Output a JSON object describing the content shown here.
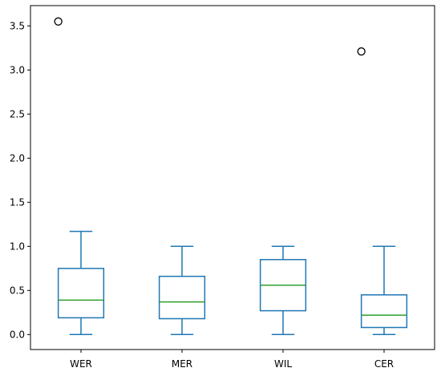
{
  "chart_data": {
    "type": "box",
    "title": "",
    "xlabel": "",
    "ylabel": "",
    "ylim": [
      -0.17,
      3.73
    ],
    "yticks": [
      "0.0",
      "0.5",
      "1.0",
      "1.5",
      "2.0",
      "2.5",
      "3.0",
      "3.5"
    ],
    "ytick_values": [
      0.0,
      0.5,
      1.0,
      1.5,
      2.0,
      2.5,
      3.0,
      3.5
    ],
    "grid": false,
    "colors": {
      "box": "#1f77b4",
      "median": "#2ca02c",
      "flier": "#000000"
    },
    "categories": [
      "WER",
      "MER",
      "WIL",
      "CER"
    ],
    "boxes": [
      {
        "name": "WER",
        "whislo": 0.0,
        "q1": 0.19,
        "med": 0.39,
        "q3": 0.75,
        "whishi": 1.17,
        "fliers": [
          3.55
        ]
      },
      {
        "name": "MER",
        "whislo": 0.0,
        "q1": 0.18,
        "med": 0.37,
        "q3": 0.66,
        "whishi": 1.0,
        "fliers": []
      },
      {
        "name": "WIL",
        "whislo": 0.0,
        "q1": 0.27,
        "med": 0.56,
        "q3": 0.85,
        "whishi": 1.0,
        "fliers": []
      },
      {
        "name": "CER",
        "whislo": 0.0,
        "q1": 0.08,
        "med": 0.22,
        "q3": 0.45,
        "whishi": 1.0,
        "fliers": [
          3.21
        ]
      }
    ]
  }
}
